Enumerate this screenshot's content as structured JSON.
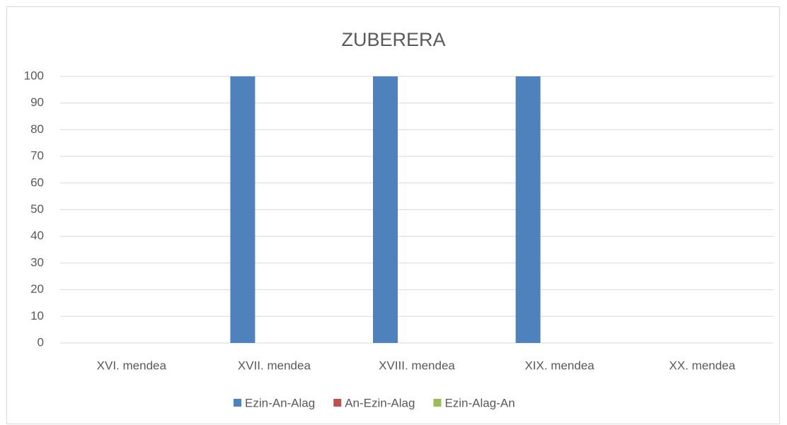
{
  "chart_data": {
    "type": "bar",
    "title": "ZUBERERA",
    "categories": [
      "XVI. mendea",
      "XVII. mendea",
      "XVIII. mendea",
      "XIX. mendea",
      "XX. mendea"
    ],
    "series": [
      {
        "name": "Ezin-An-Alag",
        "color": "#4f81bd",
        "values": [
          0,
          100,
          100,
          100,
          0
        ]
      },
      {
        "name": "An-Ezin-Alag",
        "color": "#c0504d",
        "values": [
          0,
          0,
          0,
          0,
          0
        ]
      },
      {
        "name": "Ezin-Alag-An",
        "color": "#9bbb59",
        "values": [
          0,
          0,
          0,
          0,
          0
        ]
      }
    ],
    "ylim": [
      0,
      100
    ],
    "yticks": [
      0,
      10,
      20,
      30,
      40,
      50,
      60,
      70,
      80,
      90,
      100
    ],
    "grid": true,
    "legend": "bottom"
  }
}
